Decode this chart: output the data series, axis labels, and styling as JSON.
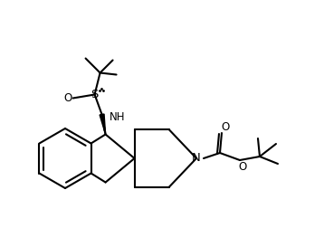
{
  "background_color": "#ffffff",
  "line_color": "#000000",
  "line_width": 1.5,
  "font_size": 8.5,
  "figsize": [
    3.58,
    2.52
  ],
  "dpi": 100,
  "xlim": [
    0,
    358
  ],
  "ylim": [
    0,
    252
  ]
}
